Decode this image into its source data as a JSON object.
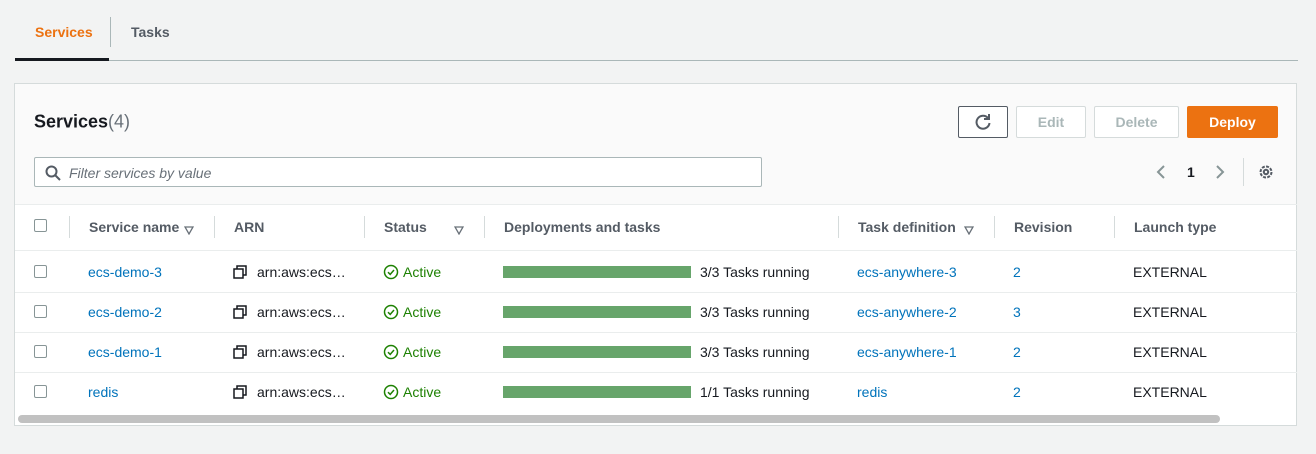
{
  "tabs": [
    "Services",
    "Tasks"
  ],
  "panel": {
    "title": "Services",
    "count": "(4)",
    "buttons": {
      "edit": "Edit",
      "delete": "Delete",
      "deploy": "Deploy"
    },
    "filter_placeholder": "Filter services by value",
    "page": "1"
  },
  "table": {
    "columns": [
      "Service name",
      "ARN",
      "Status",
      "Deployments and tasks",
      "Task definition",
      "Revision",
      "Launch type"
    ],
    "rows": [
      [
        "ecs-demo-3",
        "arn:aws:ecs…",
        "Active",
        "3/3 Tasks running",
        "ecs-anywhere-3",
        "2",
        "EXTERNAL"
      ],
      [
        "ecs-demo-2",
        "arn:aws:ecs…",
        "Active",
        "3/3 Tasks running",
        "ecs-anywhere-2",
        "3",
        "EXTERNAL"
      ],
      [
        "ecs-demo-1",
        "arn:aws:ecs…",
        "Active",
        "3/3 Tasks running",
        "ecs-anywhere-1",
        "2",
        "EXTERNAL"
      ],
      [
        "redis",
        "arn:aws:ecs…",
        "Active",
        "1/1 Tasks running",
        "redis",
        "2",
        "EXTERNAL"
      ]
    ]
  }
}
